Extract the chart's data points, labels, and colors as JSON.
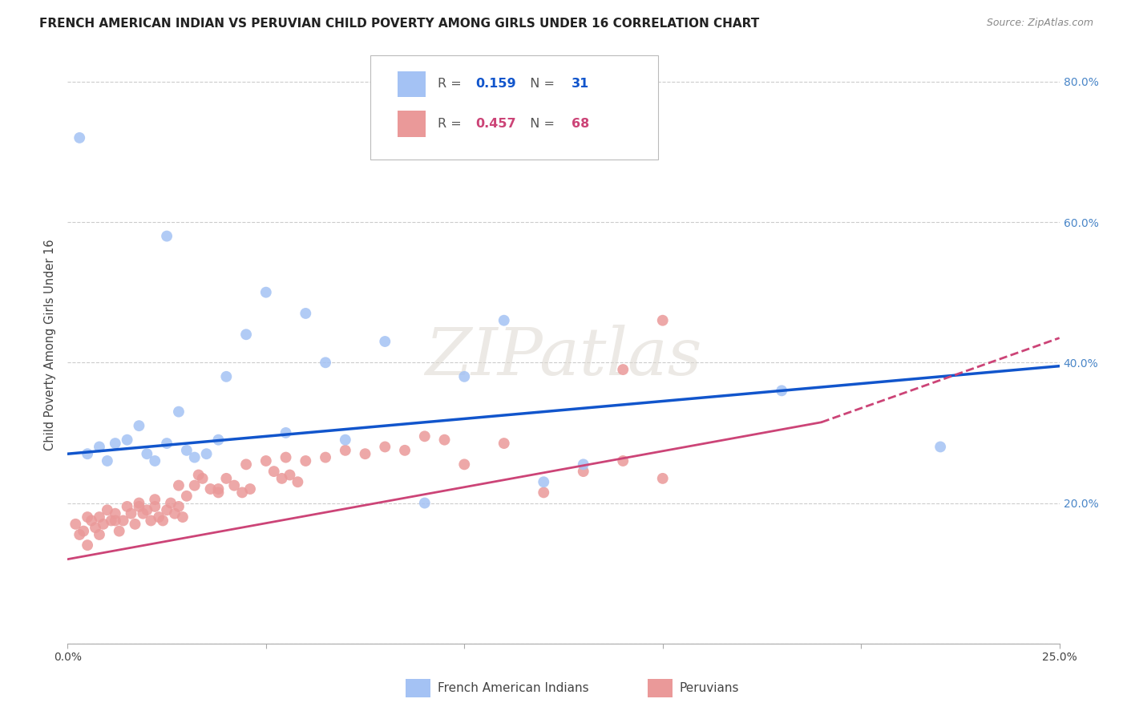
{
  "title": "FRENCH AMERICAN INDIAN VS PERUVIAN CHILD POVERTY AMONG GIRLS UNDER 16 CORRELATION CHART",
  "source": "Source: ZipAtlas.com",
  "ylabel": "Child Poverty Among Girls Under 16",
  "xlim": [
    0.0,
    0.25
  ],
  "ylim": [
    0.0,
    0.85
  ],
  "blue_R": 0.159,
  "blue_N": 31,
  "pink_R": 0.457,
  "pink_N": 68,
  "blue_color": "#a4c2f4",
  "pink_color": "#ea9999",
  "blue_line_color": "#1155cc",
  "pink_line_color": "#cc4477",
  "ytick_color": "#4a86c8",
  "blue_scatter_x": [
    0.005,
    0.008,
    0.01,
    0.012,
    0.015,
    0.018,
    0.02,
    0.022,
    0.025,
    0.028,
    0.03,
    0.032,
    0.035,
    0.038,
    0.04,
    0.045,
    0.05,
    0.055,
    0.06,
    0.065,
    0.07,
    0.08,
    0.09,
    0.1,
    0.11,
    0.12,
    0.13,
    0.18,
    0.22,
    0.003,
    0.025
  ],
  "blue_scatter_y": [
    0.27,
    0.28,
    0.26,
    0.285,
    0.29,
    0.31,
    0.27,
    0.26,
    0.285,
    0.33,
    0.275,
    0.265,
    0.27,
    0.29,
    0.38,
    0.44,
    0.5,
    0.3,
    0.47,
    0.4,
    0.29,
    0.43,
    0.2,
    0.38,
    0.46,
    0.23,
    0.255,
    0.36,
    0.28,
    0.72,
    0.58
  ],
  "pink_scatter_x": [
    0.002,
    0.003,
    0.004,
    0.005,
    0.006,
    0.007,
    0.008,
    0.009,
    0.01,
    0.011,
    0.012,
    0.013,
    0.014,
    0.015,
    0.016,
    0.017,
    0.018,
    0.019,
    0.02,
    0.021,
    0.022,
    0.023,
    0.024,
    0.025,
    0.026,
    0.027,
    0.028,
    0.029,
    0.03,
    0.032,
    0.034,
    0.036,
    0.038,
    0.04,
    0.042,
    0.044,
    0.046,
    0.05,
    0.052,
    0.054,
    0.056,
    0.058,
    0.06,
    0.065,
    0.07,
    0.075,
    0.08,
    0.085,
    0.09,
    0.095,
    0.1,
    0.11,
    0.12,
    0.13,
    0.14,
    0.15,
    0.005,
    0.008,
    0.012,
    0.018,
    0.022,
    0.028,
    0.033,
    0.038,
    0.045,
    0.055,
    0.14,
    0.15
  ],
  "pink_scatter_y": [
    0.17,
    0.155,
    0.16,
    0.18,
    0.175,
    0.165,
    0.18,
    0.17,
    0.19,
    0.175,
    0.185,
    0.16,
    0.175,
    0.195,
    0.185,
    0.17,
    0.2,
    0.185,
    0.19,
    0.175,
    0.195,
    0.18,
    0.175,
    0.19,
    0.2,
    0.185,
    0.195,
    0.18,
    0.21,
    0.225,
    0.235,
    0.22,
    0.215,
    0.235,
    0.225,
    0.215,
    0.22,
    0.26,
    0.245,
    0.235,
    0.24,
    0.23,
    0.26,
    0.265,
    0.275,
    0.27,
    0.28,
    0.275,
    0.295,
    0.29,
    0.255,
    0.285,
    0.215,
    0.245,
    0.26,
    0.235,
    0.14,
    0.155,
    0.175,
    0.195,
    0.205,
    0.225,
    0.24,
    0.22,
    0.255,
    0.265,
    0.39,
    0.46
  ],
  "watermark_text": "ZIPatlas",
  "legend_label_blue": "French American Indians",
  "legend_label_pink": "Peruvians"
}
